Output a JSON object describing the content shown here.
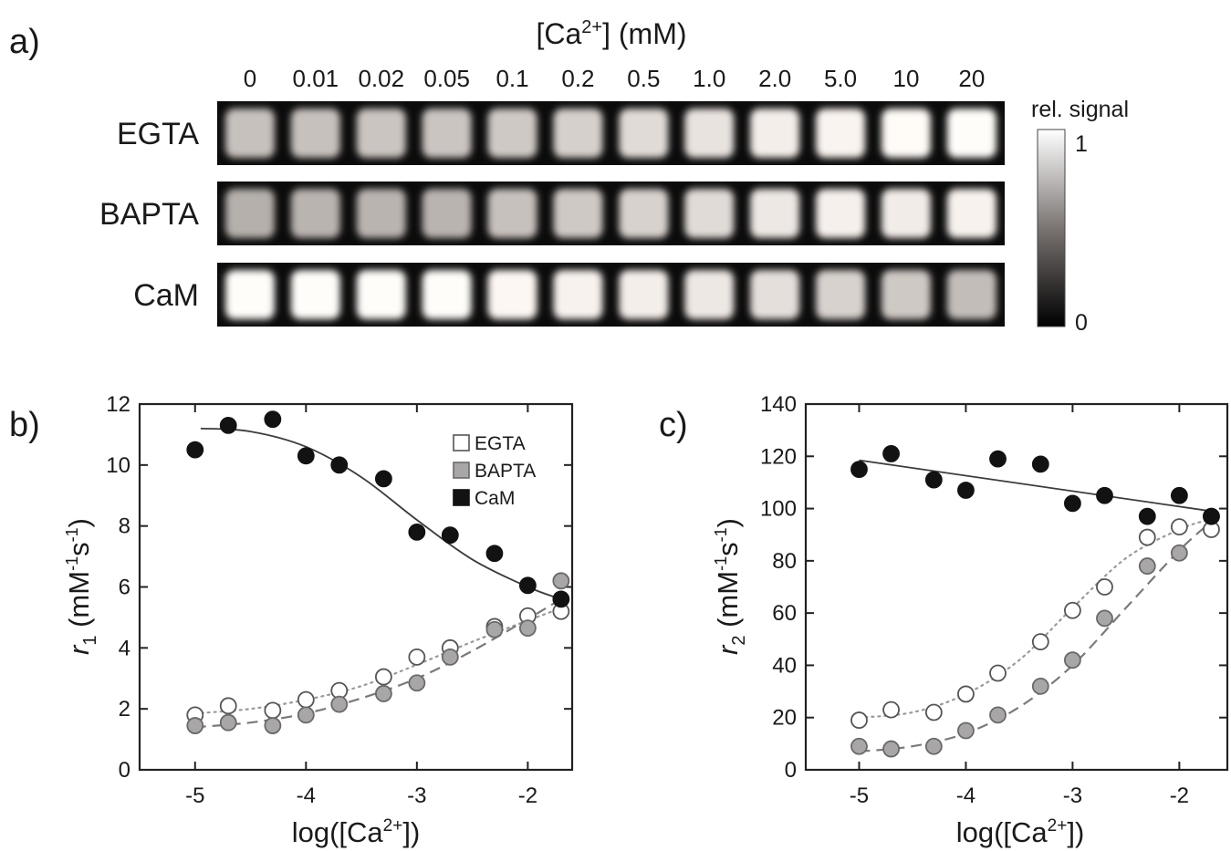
{
  "panel_a": {
    "label": "a)",
    "title": "[Ca",
    "title_sup": "2+",
    "title_suffix": "] (mM)",
    "concentrations": [
      "0",
      "0.01",
      "0.02",
      "0.05",
      "0.1",
      "0.2",
      "0.5",
      "1.0",
      "2.0",
      "5.0",
      "10",
      "20"
    ],
    "rows": [
      {
        "name": "EGTA",
        "signal": [
          0.72,
          0.72,
          0.74,
          0.74,
          0.76,
          0.79,
          0.84,
          0.88,
          0.93,
          0.96,
          0.99,
          1.0
        ]
      },
      {
        "name": "BAPTA",
        "signal": [
          0.64,
          0.66,
          0.66,
          0.66,
          0.72,
          0.76,
          0.8,
          0.84,
          0.9,
          0.94,
          0.92,
          0.95
        ]
      },
      {
        "name": "CaM",
        "signal": [
          1.0,
          1.0,
          1.0,
          1.0,
          0.97,
          0.95,
          0.93,
          0.9,
          0.86,
          0.8,
          0.76,
          0.7
        ]
      }
    ],
    "colorbar": {
      "title": "rel. signal",
      "max_label": "1",
      "min_label": "0"
    }
  },
  "chart_data": [
    {
      "panel": "b)",
      "type": "scatter",
      "xlabel": "log([Ca",
      "xlabel_sup": "2+",
      "xlabel_suffix": "])",
      "ylabel_var": "r",
      "ylabel_sub": "1",
      "ylabel_unit": " (mM",
      "ylabel_exp1": "-1",
      "ylabel_mid": "s",
      "ylabel_exp2": "-1",
      "ylabel_end": ")",
      "xlim": [
        -5.5,
        -1.6
      ],
      "ylim": [
        0,
        12
      ],
      "xticks": [
        -5,
        -4,
        -3,
        -2
      ],
      "xtick_labels": [
        "-5",
        "-4",
        "-3",
        "-2"
      ],
      "yticks": [
        0,
        2,
        4,
        6,
        8,
        10,
        12
      ],
      "ytick_labels": [
        "0",
        "2",
        "4",
        "6",
        "8",
        "10",
        "12"
      ],
      "legend": "top-right",
      "x": [
        -5,
        -4.7,
        -4.3,
        -4,
        -3.7,
        -3.3,
        -3,
        -2.7,
        -2.3,
        -2,
        -1.7
      ],
      "series": [
        {
          "name": "EGTA",
          "marker": "open",
          "fit": "dotted",
          "values": [
            1.8,
            2.1,
            1.95,
            2.3,
            2.6,
            3.05,
            3.7,
            4.0,
            4.7,
            5.05,
            5.2
          ],
          "fit_x": [
            -5,
            -4.5,
            -4,
            -3.5,
            -3,
            -2.5,
            -2,
            -1.7
          ],
          "fit_y": [
            1.85,
            2.0,
            2.3,
            2.75,
            3.45,
            4.2,
            4.9,
            5.3
          ]
        },
        {
          "name": "BAPTA",
          "marker": "gray",
          "fit": "dashed",
          "values": [
            1.45,
            1.55,
            1.45,
            1.8,
            2.15,
            2.5,
            2.85,
            3.7,
            4.6,
            4.65,
            6.2
          ],
          "fit_x": [
            -5,
            -4.5,
            -4,
            -3.5,
            -3,
            -2.5,
            -2,
            -1.7
          ],
          "fit_y": [
            1.4,
            1.55,
            1.85,
            2.35,
            3.0,
            3.9,
            4.95,
            5.6
          ]
        },
        {
          "name": "CaM",
          "marker": "black",
          "fit": "solid",
          "values": [
            10.5,
            11.3,
            11.5,
            10.3,
            10.0,
            9.55,
            7.8,
            7.7,
            7.1,
            6.05,
            5.6
          ],
          "fit_x": [
            -4.95,
            -4.5,
            -4,
            -3.5,
            -3,
            -2.5,
            -2,
            -1.7
          ],
          "fit_y": [
            11.2,
            11.1,
            10.6,
            9.6,
            8.2,
            6.9,
            6.0,
            5.6
          ]
        }
      ]
    },
    {
      "panel": "c)",
      "type": "scatter",
      "xlabel": "log([Ca",
      "xlabel_sup": "2+",
      "xlabel_suffix": "])",
      "ylabel_var": "r",
      "ylabel_sub": "2",
      "ylabel_unit": " (mM",
      "ylabel_exp1": "-1",
      "ylabel_mid": "s",
      "ylabel_exp2": "-1",
      "ylabel_end": ")",
      "xlim": [
        -5.5,
        -1.55
      ],
      "ylim": [
        0,
        140
      ],
      "xticks": [
        -5,
        -4,
        -3,
        -2
      ],
      "xtick_labels": [
        "-5",
        "-4",
        "-3",
        "-2"
      ],
      "yticks": [
        0,
        20,
        40,
        60,
        80,
        100,
        120,
        140
      ],
      "ytick_labels": [
        "0",
        "20",
        "40",
        "60",
        "80",
        "100",
        "120",
        "140"
      ],
      "x": [
        -5,
        -4.7,
        -4.3,
        -4,
        -3.7,
        -3.3,
        -3,
        -2.7,
        -2.3,
        -2,
        -1.7
      ],
      "series": [
        {
          "name": "EGTA",
          "marker": "open",
          "fit": "dotted",
          "values": [
            19,
            23,
            22,
            29,
            37,
            49,
            61,
            70,
            89,
            93,
            92
          ],
          "fit_x": [
            -5,
            -4.5,
            -4,
            -3.5,
            -3,
            -2.5,
            -2,
            -1.7
          ],
          "fit_y": [
            20,
            22,
            29,
            42,
            62,
            81,
            92,
            96
          ]
        },
        {
          "name": "BAPTA",
          "marker": "gray",
          "fit": "dashed",
          "values": [
            9,
            8,
            9,
            15,
            21,
            32,
            42,
            58,
            78,
            83,
            97
          ],
          "fit_x": [
            -5,
            -4.5,
            -4,
            -3.5,
            -3,
            -2.5,
            -2,
            -1.7
          ],
          "fit_y": [
            7,
            9,
            14,
            24,
            40,
            62,
            84,
            95
          ]
        },
        {
          "name": "CaM",
          "marker": "black",
          "fit": "solid",
          "values": [
            115,
            121,
            111,
            107,
            119,
            117,
            102,
            105,
            97,
            105,
            97
          ],
          "fit_x": [
            -5,
            -1.7
          ],
          "fit_y": [
            118.5,
            99
          ]
        }
      ]
    }
  ]
}
